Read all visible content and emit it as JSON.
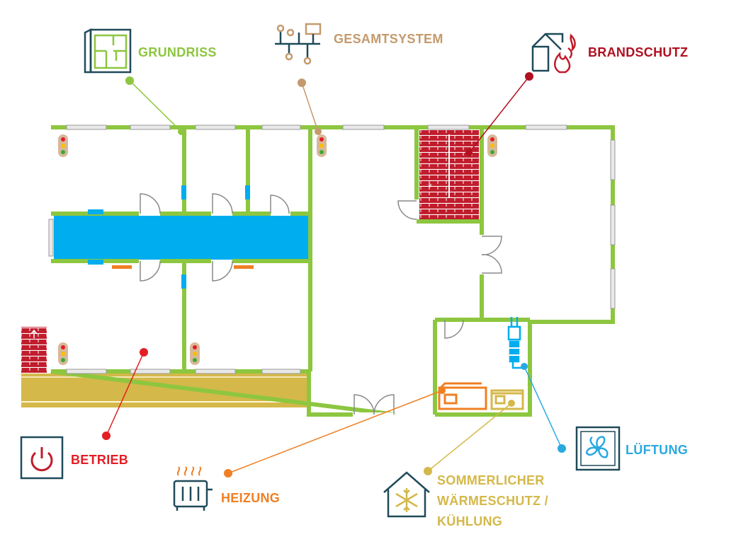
{
  "colors": {
    "wall": "#8dc63f",
    "hallway": "#00adef",
    "stair": "#c01c2c",
    "icon_dark": "#1f4a5a",
    "heater": "#f07f23",
    "cooling": "#d4b84a",
    "gesamtsystem": "#c49a6c",
    "betrieb": "#e31e24",
    "brandschutz": "#b01020"
  },
  "labels": {
    "grundriss": "GRUNDRISS",
    "gesamtsystem": "GESAMTSYSTEM",
    "brandschutz": "BRANDSCHUTZ",
    "betrieb": "BETRIEB",
    "heizung": "HEIZUNG",
    "lueftung": "LÜFTUNG",
    "sommer": [
      "SOMMERLICHER",
      "WÄRMESCHUTZ /",
      "KÜHLUNG"
    ]
  },
  "icons": {
    "grundriss": "floorplan-icon",
    "gesamtsystem": "network-icon",
    "brandschutz": "burning-house-icon",
    "betrieb": "power-icon",
    "heizung": "radiator-icon",
    "lueftung": "fan-icon",
    "sommer": "house-snowflake-icon"
  }
}
